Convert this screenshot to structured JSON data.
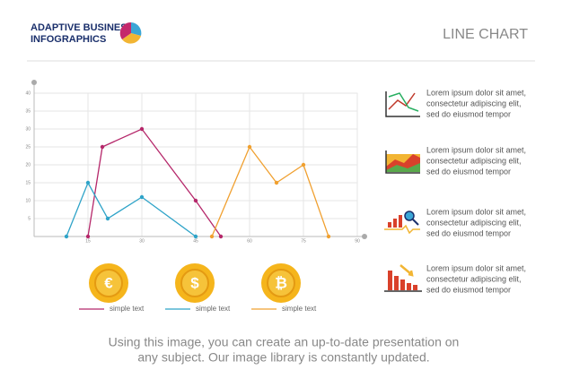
{
  "header": {
    "brand": [
      "ADAPTIVE BUSINESS",
      "INFOGRAPHICS"
    ],
    "title": "LINE CHART"
  },
  "chart_data": {
    "type": "line",
    "xlim": [
      0,
      90
    ],
    "xticks": [
      15,
      30,
      45,
      60,
      75,
      90
    ],
    "ylim": [
      0,
      40
    ],
    "yticks": [
      5,
      10,
      15,
      20,
      25,
      30,
      35,
      40
    ],
    "grid": true,
    "series": [
      {
        "name": "simple text",
        "color": "#b5276a",
        "x": [
          15,
          19,
          30,
          45,
          52
        ],
        "values": [
          0,
          25,
          30,
          10,
          0
        ]
      },
      {
        "name": "simple text",
        "color": "#2ea3c8",
        "x": [
          9,
          15,
          20.5,
          30,
          45
        ],
        "values": [
          0,
          15,
          5,
          11,
          0
        ]
      },
      {
        "name": "simple text",
        "color": "#f0a030",
        "x": [
          49.5,
          60,
          67.5,
          75,
          82
        ],
        "values": [
          0,
          25,
          15,
          20,
          0
        ]
      }
    ]
  },
  "coins": [
    "€",
    "$",
    "₿"
  ],
  "items": [
    {
      "lines": [
        "Lorem ipsum dolor sit amet,",
        "consectetur adipiscing elit,",
        "sed do eiusmod tempor"
      ]
    },
    {
      "lines": [
        "Lorem ipsum dolor sit amet,",
        "consectetur adipiscing elit,",
        "sed do eiusmod tempor"
      ]
    },
    {
      "lines": [
        "Lorem ipsum dolor sit amet,",
        "consectetur adipiscing elit,",
        "sed do eiusmod tempor"
      ]
    },
    {
      "lines": [
        "Lorem ipsum dolor sit amet,",
        "consectetur adipiscing elit,",
        "sed do eiusmod tempor"
      ]
    }
  ],
  "footer": [
    "Using this image, you can create an up-to-date presentation on",
    "any subject. Our image library is constantly updated."
  ]
}
